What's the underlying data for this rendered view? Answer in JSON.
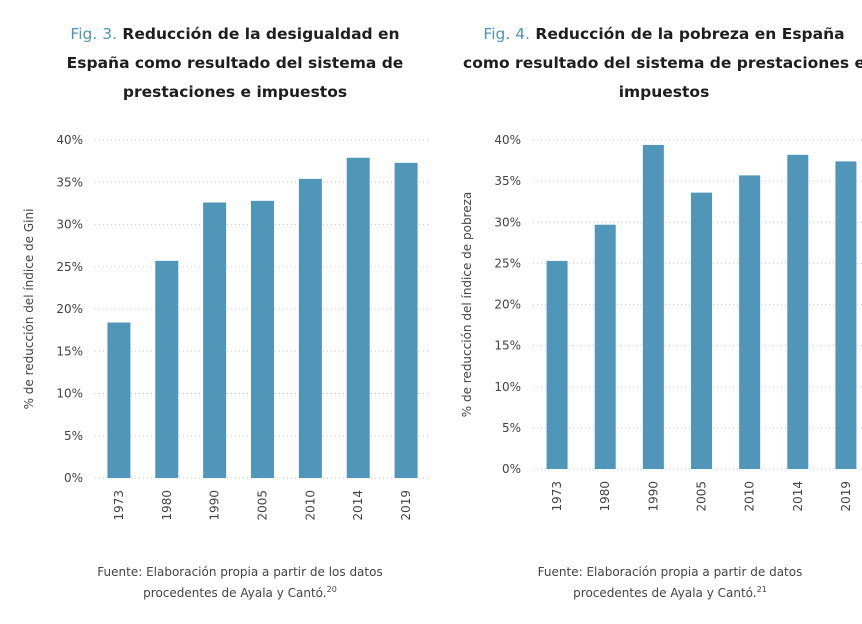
{
  "figures": [
    {
      "fig_label": "Fig. 3.",
      "title": "Reducción de la desigualdad en España como resultado del sistema de prestaciones e impuestos",
      "source_text": "Fuente: Elaboración propia a partir de los datos procedentes de Ayala y Cantó.",
      "source_ref": "20"
    },
    {
      "fig_label": "Fig. 4.",
      "title": "Reducción de la pobreza en España como resultado del sistema de prestaciones e impuestos",
      "source_text": "Fuente: Elaboración propia a partir de datos procedentes de Ayala y Cantó.",
      "source_ref": "21"
    }
  ],
  "colors": {
    "bar": "#5096b9",
    "fig_label": "#4e95b9"
  },
  "chart_data": [
    {
      "type": "bar",
      "categories": [
        "1973",
        "1980",
        "1990",
        "2005",
        "2010",
        "2014",
        "2019"
      ],
      "values": [
        18.4,
        25.7,
        32.6,
        32.8,
        35.4,
        37.9,
        37.3
      ],
      "ylabel": "% de reducción del índice de Gini",
      "ylim": [
        0,
        40
      ],
      "yticks": [
        "0%",
        "5%",
        "10%",
        "15%",
        "20%",
        "25%",
        "30%",
        "35%",
        "40%"
      ],
      "grid": true
    },
    {
      "type": "bar",
      "categories": [
        "1973",
        "1980",
        "1990",
        "2005",
        "2010",
        "2014",
        "2019"
      ],
      "values": [
        25.3,
        29.7,
        39.4,
        33.6,
        35.7,
        38.2,
        37.4
      ],
      "ylabel": "% de reducción del índice de pobreza",
      "ylim": [
        0,
        40
      ],
      "yticks": [
        "0%",
        "5%",
        "10%",
        "15%",
        "20%",
        "25%",
        "30%",
        "35%",
        "40%"
      ],
      "grid": true
    }
  ]
}
